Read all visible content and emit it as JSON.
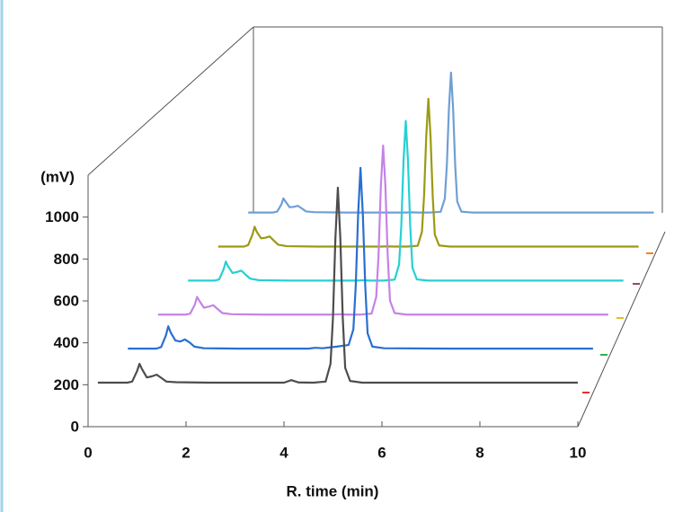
{
  "chart_data": {
    "type": "waterfall",
    "y_label": "(mV)",
    "x_label": "R. time (min)",
    "xlim": [
      0,
      10
    ],
    "xticks": [
      0,
      2,
      4,
      6,
      8,
      10
    ],
    "ylim": [
      0,
      1200
    ],
    "yticks": [
      0,
      200,
      400,
      600,
      800,
      1000
    ],
    "x": [
      0.2,
      0.8,
      0.9,
      1.0,
      1.05,
      1.1,
      1.2,
      1.3,
      1.4,
      1.5,
      1.6,
      1.8,
      2.5,
      3.5,
      4.0,
      4.15,
      4.3,
      4.6,
      4.85,
      4.95,
      5.0,
      5.05,
      5.1,
      5.15,
      5.2,
      5.25,
      5.35,
      5.6,
      7,
      10
    ],
    "series": [
      {
        "color": "#4d4d4d",
        "values": [
          210,
          210,
          215,
          265,
          300,
          275,
          235,
          240,
          248,
          232,
          215,
          212,
          210,
          210,
          210,
          222,
          211,
          210,
          215,
          300,
          520,
          900,
          1140,
          900,
          520,
          280,
          218,
          210,
          210,
          210
        ]
      },
      {
        "color": "#2a6fd0",
        "values": [
          210,
          210,
          218,
          275,
          320,
          290,
          250,
          245,
          255,
          240,
          220,
          212,
          210,
          210,
          210,
          214,
          212,
          220,
          228,
          305,
          520,
          870,
          1100,
          870,
          520,
          285,
          220,
          212,
          210,
          210
        ]
      },
      {
        "color": "#c583e6",
        "values": [
          210,
          210,
          215,
          260,
          300,
          280,
          245,
          250,
          258,
          238,
          218,
          212,
          210,
          210,
          210,
          212,
          210,
          210,
          215,
          300,
          510,
          860,
          1070,
          860,
          510,
          280,
          218,
          210,
          210,
          210
        ]
      },
      {
        "color": "#25d0d3",
        "values": [
          210,
          210,
          216,
          270,
          310,
          285,
          250,
          255,
          262,
          240,
          220,
          212,
          210,
          210,
          210,
          212,
          210,
          210,
          215,
          295,
          500,
          840,
          1050,
          840,
          500,
          278,
          216,
          210,
          210,
          210
        ]
      },
      {
        "color": "#9c9a12",
        "values": [
          210,
          210,
          218,
          275,
          318,
          290,
          255,
          258,
          265,
          242,
          220,
          212,
          210,
          210,
          210,
          211,
          210,
          210,
          214,
          290,
          490,
          810,
          1015,
          810,
          490,
          275,
          216,
          210,
          210,
          210
        ]
      },
      {
        "color": "#6f9fd6",
        "values": [
          210,
          210,
          215,
          255,
          290,
          272,
          240,
          242,
          248,
          232,
          216,
          212,
          210,
          210,
          210,
          211,
          210,
          210,
          214,
          288,
          480,
          800,
          1000,
          800,
          480,
          272,
          215,
          210,
          210,
          210
        ]
      }
    ]
  }
}
